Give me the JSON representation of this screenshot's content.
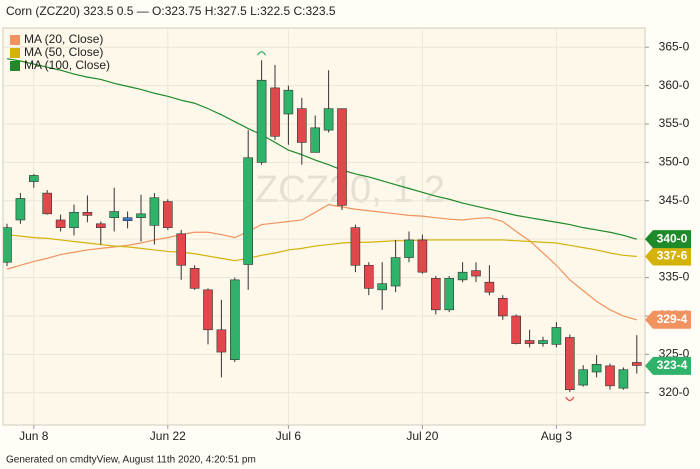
{
  "chart_data": {
    "type": "candlestick",
    "title": "Corn (ZCZ20) 323.5 0.5 — O:323.75 H:327.5 L:322.5 C:323.5",
    "watermark": "ZCZ20, 1 2",
    "footer": "Generated on cmdtyView, August 11th 2020, 4:20:51 pm",
    "categories": [
      null,
      null,
      "Jun 8",
      null,
      null,
      null,
      null,
      null,
      null,
      null,
      null,
      null,
      "Jun 22",
      null,
      null,
      null,
      null,
      null,
      null,
      null,
      null,
      "Jul 6",
      null,
      null,
      null,
      null,
      null,
      null,
      null,
      null,
      null,
      "Jul 20",
      null,
      null,
      null,
      null,
      null,
      null,
      null,
      null,
      null,
      "Aug 3",
      null,
      null,
      null,
      null,
      null,
      null
    ],
    "candles": {
      "up_color": "#2fb36a",
      "down_color": "#e2474b",
      "flat_color": "#3a7bd5",
      "tag_label": "323-4",
      "open": [
        337,
        342.5,
        347.5,
        346,
        342.5,
        341.5,
        343.3,
        342,
        342.8,
        342.6,
        342.8,
        341.8,
        344.9,
        340.7,
        336.2,
        333.4,
        328.2,
        324.3,
        336.7,
        350,
        359.7,
        356.3,
        357,
        351.3,
        354.2,
        357,
        341.5,
        336.6,
        333.4,
        333.9,
        337.6,
        339.9,
        334.9,
        330.8,
        334.7,
        335.9,
        334.4,
        332.3,
        330,
        326.8,
        326.4,
        326.3,
        327.2,
        321,
        322.7,
        323.5,
        320.6,
        323.75
      ],
      "high": [
        342,
        346,
        348.5,
        346.4,
        343.2,
        344.5,
        345.7,
        342.3,
        346.7,
        343.6,
        345.8,
        346,
        345.2,
        341.2,
        336.6,
        333.6,
        332.1,
        335,
        354.2,
        363.3,
        362.7,
        360,
        358.4,
        356.1,
        362,
        357,
        341.9,
        337,
        337,
        339.9,
        341,
        340.6,
        335.2,
        335.2,
        337,
        337,
        336.6,
        332.7,
        330.2,
        328.2,
        327.3,
        329.2,
        327.6,
        323.6,
        324.9,
        323.8,
        323.3,
        327.5
      ],
      "low": [
        336.5,
        342,
        346.7,
        343.2,
        341,
        340.5,
        342.2,
        339.3,
        341,
        341.4,
        339.7,
        339.3,
        341.2,
        334.7,
        333.4,
        326.3,
        322,
        324,
        333.4,
        349.7,
        352.9,
        352.3,
        349.7,
        351.3,
        353.9,
        343.8,
        335.7,
        332.7,
        330.8,
        333.1,
        337,
        335.5,
        330.2,
        330.5,
        334.4,
        334.4,
        332.7,
        329.5,
        326.3,
        325.9,
        326,
        325.9,
        320.1,
        320.8,
        322,
        320.4,
        320.4,
        322.5
      ],
      "close": [
        341.5,
        345.3,
        348.3,
        343.3,
        341.5,
        343.5,
        343,
        341.5,
        343.6,
        342.6,
        343.3,
        345.4,
        341.5,
        336.6,
        333.6,
        328.2,
        325.3,
        334.7,
        350.6,
        360.7,
        353.4,
        359.4,
        352.6,
        354.5,
        357,
        344.4,
        336.6,
        333.6,
        334.2,
        337.6,
        339.9,
        335.7,
        330.8,
        334.9,
        335.7,
        335.2,
        333.1,
        330,
        326.4,
        326.4,
        326.8,
        328.5,
        320.4,
        323,
        323.7,
        320.9,
        323,
        323.5
      ]
    },
    "series": [
      {
        "name": "MA (20, Close)",
        "color": "#f2925e",
        "tag_label": "329-4",
        "values": [
          336.1,
          336.6,
          337.1,
          337.5,
          338.0,
          338.3,
          338.6,
          338.8,
          339.0,
          339.2,
          339.5,
          339.9,
          340.2,
          340.6,
          340.9,
          340.9,
          340.6,
          340.2,
          341.0,
          341.9,
          342.1,
          342.3,
          342.5,
          343.5,
          344.5,
          344.2,
          343.9,
          343.7,
          343.5,
          343.3,
          343.1,
          343.0,
          342.8,
          342.6,
          342.5,
          342.7,
          342.8,
          342.3,
          341.0,
          339.8,
          338.2,
          336.6,
          334.7,
          333.3,
          331.9,
          330.8,
          330.0,
          329.5
        ]
      },
      {
        "name": "MA (50, Close)",
        "color": "#d4b208",
        "tag_label": "337-6",
        "values": [
          340.6,
          340.4,
          340.2,
          340.1,
          339.9,
          339.7,
          339.5,
          339.3,
          339.1,
          339.0,
          338.8,
          338.6,
          338.4,
          338.3,
          338.1,
          337.8,
          337.5,
          337.2,
          337.5,
          337.9,
          338.2,
          338.6,
          338.8,
          339.1,
          339.3,
          339.5,
          339.6,
          339.6,
          339.7,
          339.8,
          339.8,
          339.9,
          339.9,
          339.9,
          339.9,
          339.9,
          339.9,
          339.9,
          339.8,
          339.7,
          339.6,
          339.5,
          339.2,
          338.9,
          338.6,
          338.2,
          337.9,
          337.75
        ]
      },
      {
        "name": "MA (100, Close)",
        "color": "#1f8a2a",
        "tag_label": "340-0",
        "values": [
          363.5,
          363.2,
          362.8,
          362.4,
          362.0,
          361.5,
          361.1,
          360.8,
          360.3,
          359.9,
          359.5,
          359.0,
          358.6,
          358.1,
          357.7,
          357.0,
          356.2,
          355.3,
          354.4,
          353.6,
          352.6,
          351.6,
          351.0,
          350.3,
          349.7,
          349.0,
          348.5,
          348.1,
          347.6,
          347.1,
          346.6,
          346.1,
          345.6,
          345.2,
          344.7,
          344.3,
          343.9,
          343.5,
          343.1,
          342.8,
          342.5,
          342.2,
          341.9,
          341.5,
          341.2,
          340.9,
          340.5,
          340.0
        ]
      }
    ],
    "ylim": [
      315.8,
      367.5
    ],
    "yticks": [
      {
        "value": 320,
        "label": "320-0"
      },
      {
        "value": 325,
        "label": "325-0"
      },
      {
        "value": 330,
        "label": "330-0"
      },
      {
        "value": 335,
        "label": "335-0"
      },
      {
        "value": 340,
        "label": "340-0"
      },
      {
        "value": 345,
        "label": "345-0"
      },
      {
        "value": 350,
        "label": "350-0"
      },
      {
        "value": 355,
        "label": "355-0"
      },
      {
        "value": 360,
        "label": "360-0"
      },
      {
        "value": 365,
        "label": "365-0"
      }
    ],
    "grid": true,
    "legend": "top-left"
  }
}
